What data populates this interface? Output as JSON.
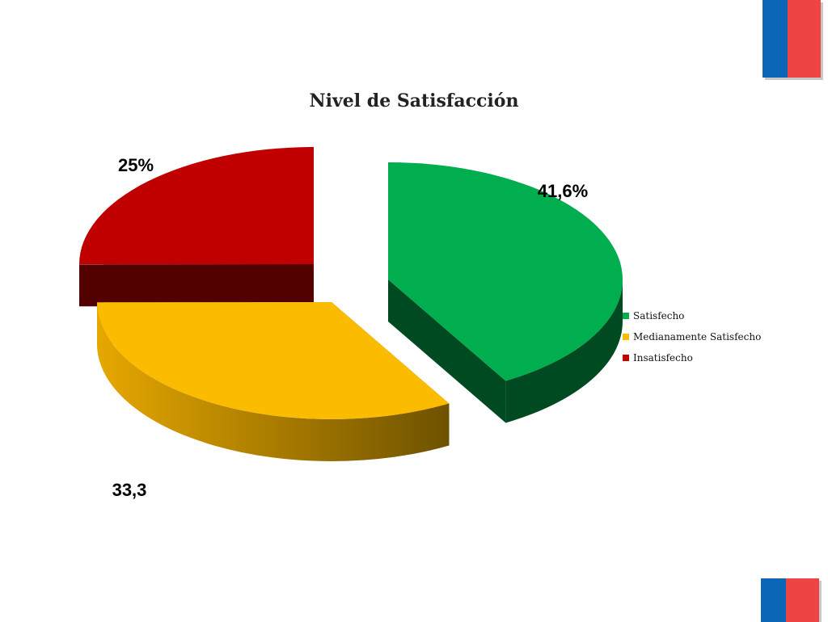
{
  "colors": {
    "flag_blue": "#0b66b8",
    "flag_red": "#ef4444"
  },
  "chart_data": {
    "type": "pie",
    "style": "3d-exploded",
    "title": "Nivel de Satisfacción",
    "legend_position": "right",
    "slices": [
      {
        "name": "Satisfecho",
        "value": 41.6,
        "label": "41,6%",
        "color": "#00ad4f",
        "side_color": "#004a22"
      },
      {
        "name": "Medianamente Satisfecho",
        "value": 33.3,
        "label": "33,3",
        "color": "#fbbc00",
        "side_color": "#8a6a00"
      },
      {
        "name": "Insatisfecho",
        "value": 25,
        "label": "25%",
        "color": "#c00000",
        "side_color": "#520000"
      }
    ]
  }
}
